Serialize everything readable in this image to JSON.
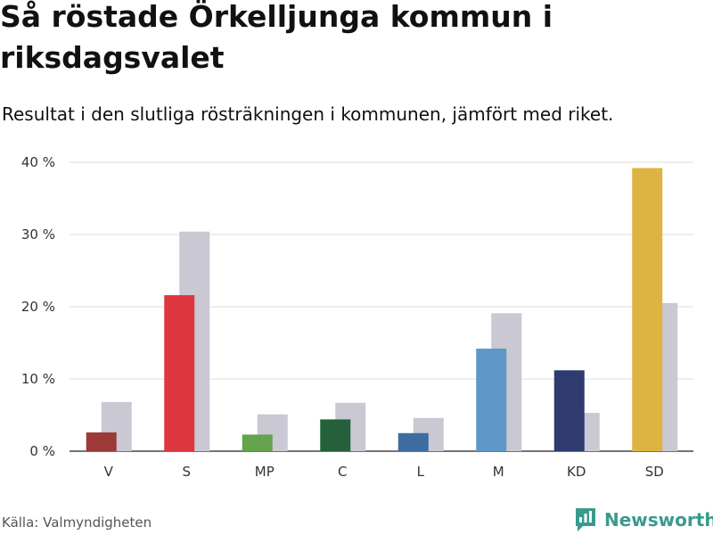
{
  "title": "Så röstade Örkelljunga kommun i riksdagsvalet",
  "subtitle": "Resultat i den slutliga rösträkningen i kommunen, jämfört med riket.",
  "source": "Källa: Valmyndigheten",
  "brand": {
    "name": "Newsworthy",
    "icon": "newsworthy-logo-icon",
    "color": "#3a9a8c"
  },
  "chart_data": {
    "type": "bar",
    "categories": [
      "V",
      "S",
      "MP",
      "C",
      "L",
      "M",
      "KD",
      "SD"
    ],
    "series": [
      {
        "name": "Örkelljunga kommun",
        "values": [
          2.6,
          21.6,
          2.3,
          4.4,
          2.5,
          14.2,
          11.2,
          39.2
        ],
        "colors": [
          "#9b3a37",
          "#dd3740",
          "#65a34e",
          "#24613a",
          "#3e6ca0",
          "#5f97c9",
          "#2f3b6f",
          "#ddb442"
        ]
      },
      {
        "name": "Riket",
        "values": [
          6.8,
          30.4,
          5.1,
          6.7,
          4.6,
          19.1,
          5.3,
          20.5
        ],
        "color": "#c9c8d3"
      }
    ],
    "yticks": [
      0,
      10,
      20,
      30,
      40
    ],
    "ytick_labels": [
      "0 %",
      "10 %",
      "20 %",
      "30 %",
      "40 %"
    ],
    "ylim": [
      0,
      40
    ],
    "grid": true
  }
}
